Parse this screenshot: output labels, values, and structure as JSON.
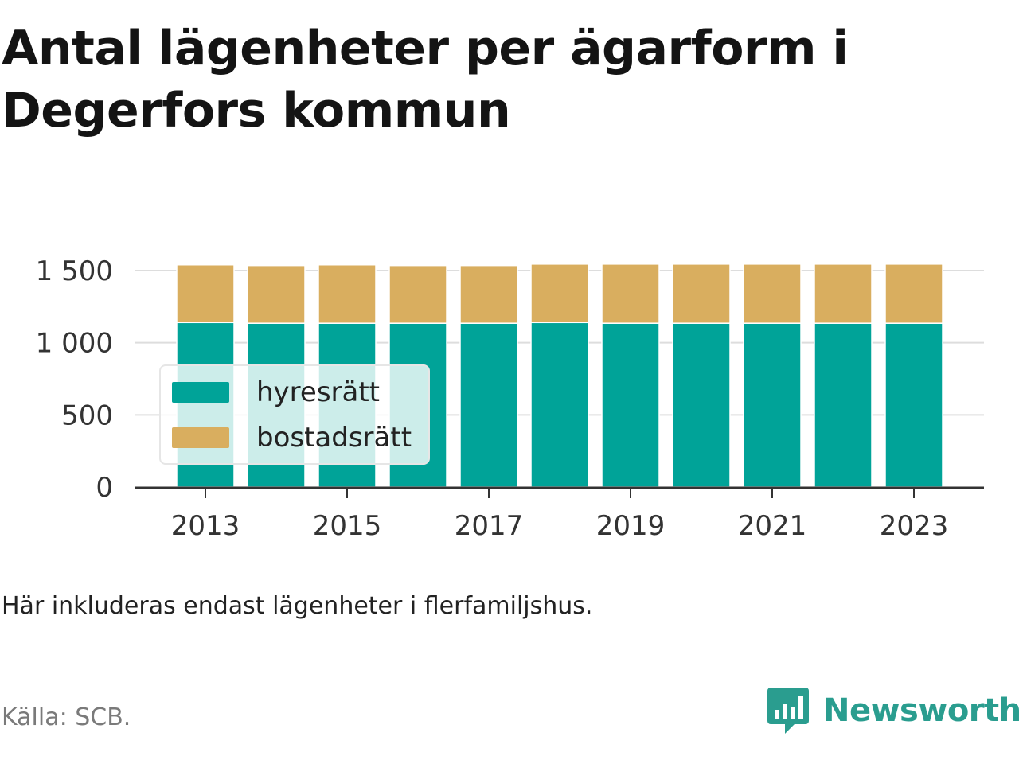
{
  "title": "Antal lägenheter per ägarform i Degerfors kommun",
  "note": "Här inkluderas endast lägenheter i flerfamiljshus.",
  "source": "Källa: SCB.",
  "brand": {
    "name": "Newsworthy",
    "icon": "newsworthy-logo-icon",
    "color": "#2a9d8f"
  },
  "chart_data": {
    "type": "bar",
    "stacked": true,
    "categories": [
      2013,
      2014,
      2015,
      2016,
      2017,
      2018,
      2019,
      2020,
      2021,
      2022,
      2023
    ],
    "x_tick_labels": [
      "2013",
      "2015",
      "2017",
      "2019",
      "2021",
      "2023"
    ],
    "y_ticks": [
      0,
      500,
      1000,
      1500
    ],
    "y_tick_labels": [
      "0",
      "500",
      "1 000",
      "1 500"
    ],
    "ylim": [
      0,
      1650
    ],
    "grid": true,
    "legend_position": "left-middle",
    "series": [
      {
        "name": "hyresrätt",
        "color": "#00a398",
        "values": [
          1140,
          1135,
          1135,
          1135,
          1135,
          1140,
          1135,
          1135,
          1135,
          1135,
          1135
        ]
      },
      {
        "name": "bostadsrätt",
        "color": "#d9ae5f",
        "values": [
          400,
          400,
          405,
          400,
          400,
          405,
          410,
          410,
          410,
          410,
          410
        ]
      }
    ]
  }
}
